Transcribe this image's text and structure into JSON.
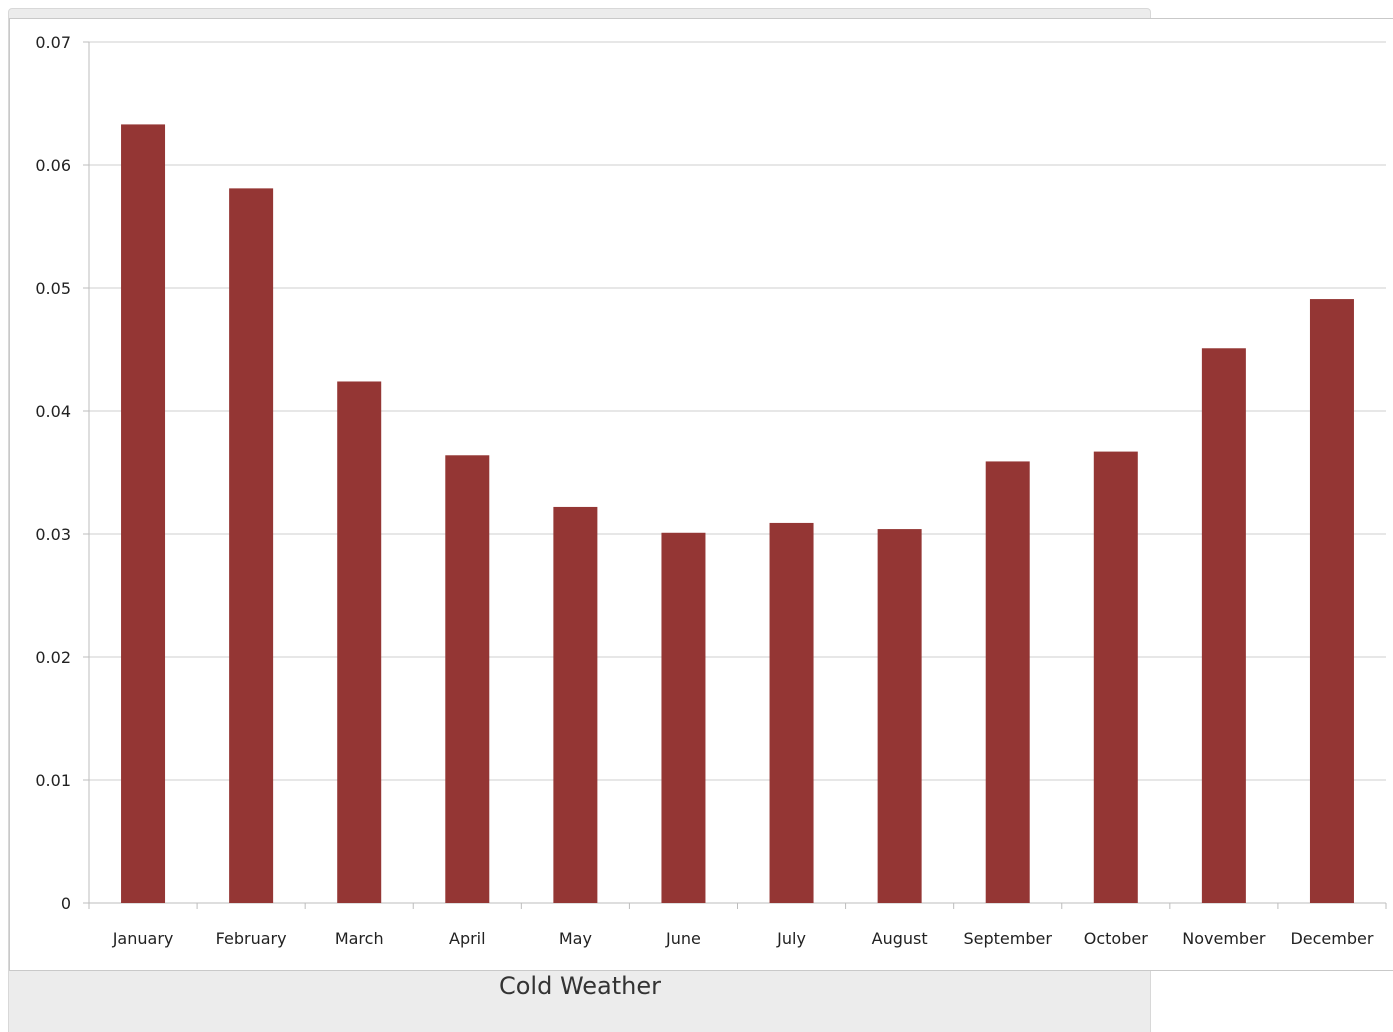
{
  "caption": "Cold Weather",
  "colors": {
    "bar": "#943634",
    "grid": "#cfcfcf",
    "axis": "#bdbdbd"
  },
  "chart_data": {
    "type": "bar",
    "title": "",
    "xlabel": "",
    "ylabel": "",
    "categories": [
      "January",
      "February",
      "March",
      "April",
      "May",
      "June",
      "July",
      "August",
      "September",
      "October",
      "November",
      "December"
    ],
    "values": [
      0.0633,
      0.0581,
      0.0424,
      0.0364,
      0.0322,
      0.0301,
      0.0309,
      0.0304,
      0.0359,
      0.0367,
      0.0451,
      0.0491
    ],
    "ylim": [
      0,
      0.07
    ],
    "yticks": [
      "0",
      "0.01",
      "0.02",
      "0.03",
      "0.04",
      "0.05",
      "0.06",
      "0.07"
    ],
    "grid": true,
    "legend": "none"
  }
}
